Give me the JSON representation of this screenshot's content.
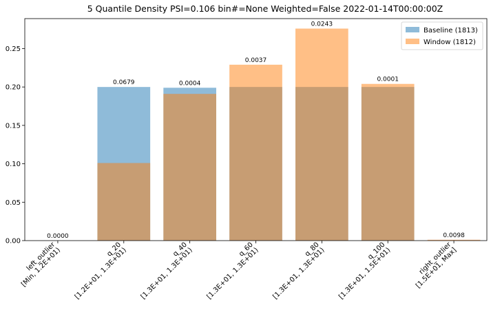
{
  "chart_data": {
    "type": "bar",
    "title": "5 Quantile Density PSI=0.106 bin#=None Weighted=False 2022-01-14T00:00:00Z",
    "xlabel": "",
    "ylabel": "",
    "categories": [
      "left_outlier\n[Min, 1.2E+01)",
      "q_20\n[1.2E+01, 1.3E+01)",
      "q_40\n[1.3E+01, 1.3E+01)",
      "q_60\n[1.3E+01, 1.3E+01)",
      "q_80\n[1.3E+01, 1.3E+01)",
      "q_100\n[1.3E+01, 1.5E+01)",
      "right_outlier\n[1.5E+01, Max]"
    ],
    "series": [
      {
        "name": "Baseline (1813)",
        "color": "#1f77b4",
        "values": [
          0.0,
          0.2,
          0.199,
          0.2,
          0.2,
          0.2,
          0.0
        ]
      },
      {
        "name": "Window (1812)",
        "color": "#ff7f0e",
        "values": [
          0.0,
          0.101,
          0.191,
          0.229,
          0.276,
          0.204,
          0.0011
        ]
      }
    ],
    "bar_labels": [
      "0.0000",
      "0.0679",
      "0.0004",
      "0.0037",
      "0.0243",
      "0.0001",
      "0.0098"
    ],
    "yticks": [
      "0.00",
      "0.05",
      "0.10",
      "0.15",
      "0.20",
      "0.25"
    ],
    "ylim": [
      0,
      0.289
    ],
    "legend_placement": "top-right",
    "grid": false,
    "bar_opacity": 0.5
  }
}
